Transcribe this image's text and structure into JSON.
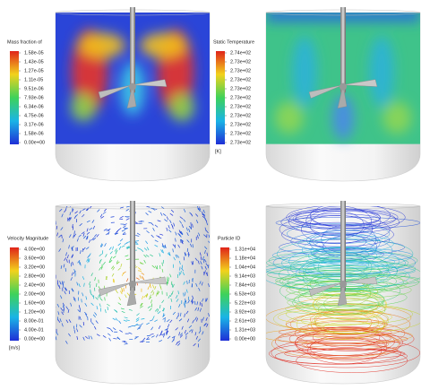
{
  "panels": [
    {
      "legend": {
        "title": "Mass fraction of",
        "ticks": [
          "1.58e-05",
          "1.43e-05",
          "1.27e-05",
          "1.11e-05",
          "9.51e-06",
          "7.93e-06",
          "6.34e-06",
          "4.75e-06",
          "3.17e-06",
          "1.58e-06",
          "0.00e+00"
        ]
      }
    },
    {
      "legend": {
        "title": "Static Temperature",
        "ticks": [
          "2.74e+02",
          "2.73e+02",
          "2.73e+02",
          "2.73e+02",
          "2.73e+02",
          "2.73e+02",
          "2.73e+02",
          "2.73e+02",
          "2.73e+02",
          "2.73e+02",
          "2.73e+02"
        ],
        "unit": "[K]"
      }
    },
    {
      "legend": {
        "title": "Velocity Magnitude",
        "ticks": [
          "4.00e+00",
          "3.60e+00",
          "3.20e+00",
          "2.80e+00",
          "2.40e+00",
          "2.00e+00",
          "1.60e+00",
          "1.20e+00",
          "8.00e-01",
          "4.00e-01",
          "0.00e+00"
        ],
        "unit": "[m/s]"
      }
    },
    {
      "legend": {
        "title": "Particle ID",
        "ticks": [
          "1.31e+04",
          "1.18e+04",
          "1.04e+04",
          "9.14e+03",
          "7.84e+03",
          "6.53e+03",
          "5.22e+03",
          "3.92e+03",
          "2.61e+03",
          "1.31e+03",
          "0.00e+00"
        ]
      }
    }
  ]
}
